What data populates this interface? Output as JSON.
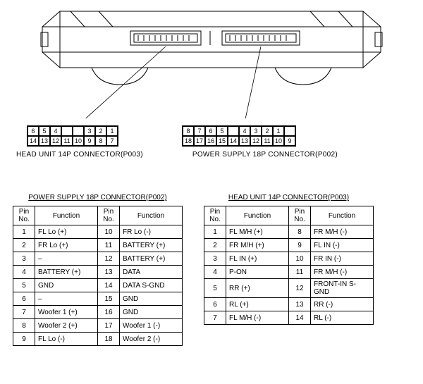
{
  "connectors": {
    "head_unit": {
      "label": "HEAD UNIT 14P CONNECTOR(P003)",
      "pins_top": [
        "6",
        "5",
        "4",
        "",
        "",
        "3",
        "2",
        "1"
      ],
      "pins_bottom": [
        "14",
        "13",
        "12",
        "11",
        "10",
        "9",
        "8",
        "7"
      ]
    },
    "power_supply": {
      "label": "POWER SUPPLY 18P CONNECTOR(P002)",
      "pins_top": [
        "8",
        "7",
        "6",
        "5",
        "",
        "4",
        "3",
        "2",
        "1"
      ],
      "pins_bottom": [
        "18",
        "17",
        "16",
        "15",
        "14",
        "13",
        "12",
        "11",
        "10",
        "9"
      ]
    }
  },
  "tables": {
    "power_supply": {
      "title": "POWER SUPPLY 18P CONNECTOR(P002)",
      "headers": [
        "Pin No.",
        "Function",
        "Pin No.",
        "Function"
      ],
      "rows": [
        [
          "1",
          "FL Lo (+)",
          "10",
          "FR Lo (-)"
        ],
        [
          "2",
          "FR Lo (+)",
          "11",
          "BATTERY (+)"
        ],
        [
          "3",
          "–",
          "12",
          "BATTERY (+)"
        ],
        [
          "4",
          "BATTERY (+)",
          "13",
          "DATA"
        ],
        [
          "5",
          "GND",
          "14",
          "DATA S-GND"
        ],
        [
          "6",
          "–",
          "15",
          "GND"
        ],
        [
          "7",
          "Woofer 1 (+)",
          "16",
          "GND"
        ],
        [
          "8",
          "Woofer 2 (+)",
          "17",
          "Woofer 1 (-)"
        ],
        [
          "9",
          "FL Lo (-)",
          "18",
          "Woofer 2 (-)"
        ]
      ]
    },
    "head_unit": {
      "title": "HEAD UNIT 14P CONNECTOR(P003)",
      "headers": [
        "Pin No.",
        "Function",
        "Pin No.",
        "Function"
      ],
      "rows": [
        [
          "1",
          "FL M/H (+)",
          "8",
          "FR M/H (-)"
        ],
        [
          "2",
          "FR M/H (+)",
          "9",
          "FL IN (-)"
        ],
        [
          "3",
          "FL IN (+)",
          "10",
          "FR IN (-)"
        ],
        [
          "4",
          "P-ON",
          "11",
          "FR M/H (-)"
        ],
        [
          "5",
          "RR (+)",
          "12",
          "FRONT-IN S-GND"
        ],
        [
          "6",
          "RL (+)",
          "13",
          "RR (-)"
        ],
        [
          "7",
          "FL M/H (-)",
          "14",
          "RL (-)"
        ]
      ]
    }
  },
  "style": {
    "stroke": "#000000",
    "background": "#ffffff",
    "font_size_label": 10,
    "font_size_cell": 9
  }
}
